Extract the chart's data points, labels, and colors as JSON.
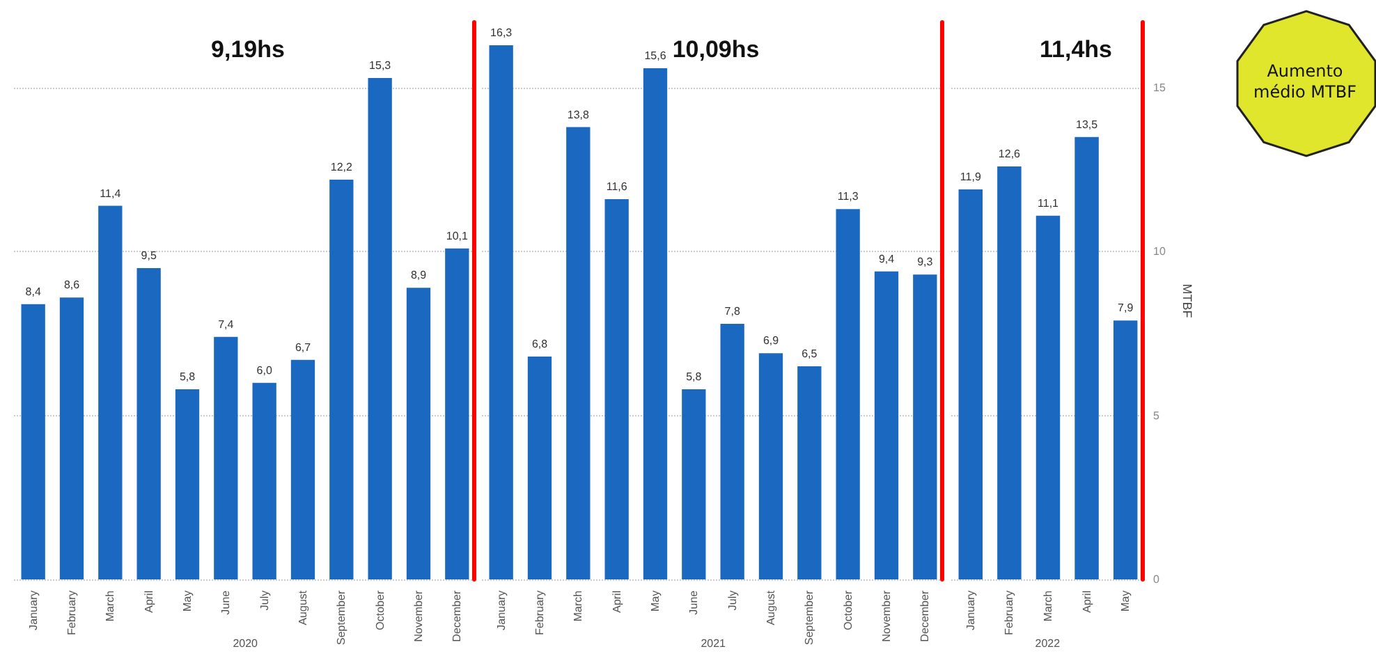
{
  "chart_data": [
    {
      "type": "bar",
      "title": "9,19hs",
      "xlabel": "2020",
      "categories": [
        "January",
        "February",
        "March",
        "April",
        "May",
        "June",
        "July",
        "August",
        "September",
        "October",
        "November",
        "December"
      ],
      "values": [
        8.4,
        8.6,
        11.4,
        9.5,
        5.8,
        7.4,
        6.0,
        6.7,
        12.2,
        15.3,
        8.9,
        10.1
      ],
      "value_labels": [
        "8,4",
        "8,6",
        "11,4",
        "9,5",
        "5,8",
        "7,4",
        "6,0",
        "6,7",
        "12,2",
        "15,3",
        "8,9",
        "10,1"
      ],
      "color": "#1a68c0",
      "ylim": [
        0,
        17
      ],
      "yticks": [
        0,
        5,
        10,
        15
      ],
      "grid": "y",
      "tick_labels": "x"
    },
    {
      "type": "bar",
      "title": "10,09hs",
      "xlabel": "2021",
      "categories": [
        "January",
        "February",
        "March",
        "April",
        "May",
        "June",
        "July",
        "August",
        "September",
        "October",
        "November",
        "December"
      ],
      "values": [
        16.3,
        6.8,
        13.8,
        11.6,
        15.6,
        5.8,
        7.8,
        6.9,
        6.5,
        11.3,
        9.4,
        9.3
      ],
      "value_labels": [
        "16,3",
        "6,8",
        "13,8",
        "11,6",
        "15,6",
        "5,8",
        "7,8",
        "6,9",
        "6,5",
        "11,3",
        "9,4",
        "9,3"
      ],
      "color": "#1a68c0",
      "ylim": [
        0,
        17
      ],
      "yticks": [
        0,
        5,
        10,
        15
      ],
      "grid": "y",
      "tick_labels": "x"
    },
    {
      "type": "bar",
      "title": "11,4hs",
      "xlabel": "2022",
      "ylabel": "MTBF",
      "categories": [
        "January",
        "February",
        "March",
        "April",
        "May"
      ],
      "values": [
        11.9,
        12.6,
        11.1,
        13.5,
        7.9
      ],
      "value_labels": [
        "11,9",
        "12,6",
        "11,1",
        "13,5",
        "7,9"
      ],
      "color": "#1a68c0",
      "ylim": [
        0,
        17
      ],
      "yticks": [
        0,
        5,
        10,
        15
      ],
      "grid": "y",
      "annotations": [
        "Aumento médio MTBF"
      ]
    }
  ]
}
